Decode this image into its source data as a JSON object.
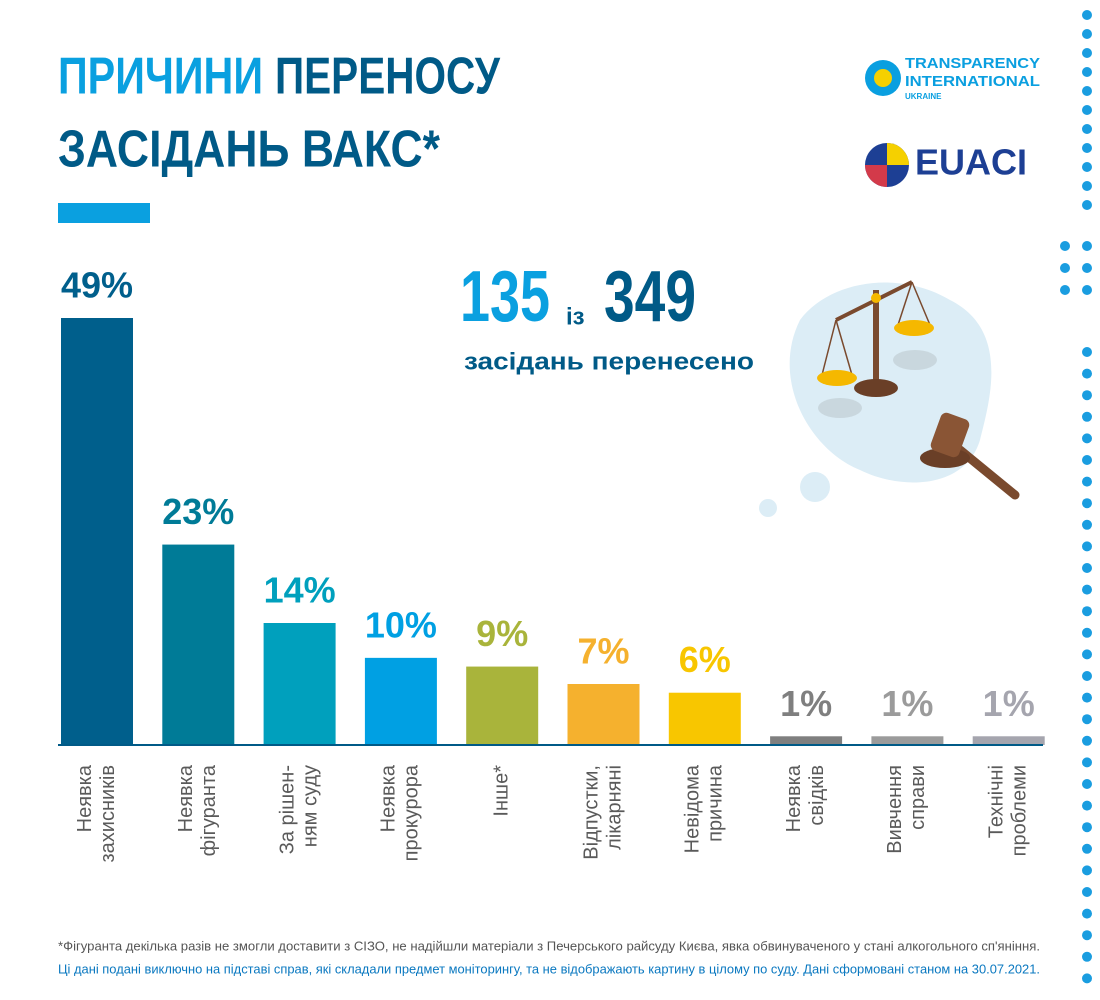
{
  "chart_data": {
    "type": "bar",
    "title": [
      "ПРИЧИНИ",
      "ПЕРЕНОСУ",
      "ЗАСІДАНЬ ВАКС*"
    ],
    "categories": [
      [
        "Неявка",
        "захисників"
      ],
      [
        "Неявка",
        "фігуранта"
      ],
      [
        "За рішен-",
        "ням суду"
      ],
      [
        "Неявка",
        "прокурора"
      ],
      [
        "Інше*"
      ],
      [
        "Відпустки,",
        "лікарняні"
      ],
      [
        "Невідома",
        "причина"
      ],
      [
        "Неявка",
        "свідків"
      ],
      [
        "Вивчення",
        "справи"
      ],
      [
        "Технічні",
        "проблеми"
      ]
    ],
    "values": [
      49,
      23,
      14,
      10,
      9,
      7,
      6,
      1,
      1,
      1
    ],
    "value_labels": [
      "49%",
      "23%",
      "14%",
      "10%",
      "9%",
      "7%",
      "6%",
      "1%",
      "1%",
      "1%"
    ],
    "colors": [
      "#005f8c",
      "#007b97",
      "#00a0bd",
      "#00a0e3",
      "#a9b43b",
      "#f5b12e",
      "#f8c600",
      "#7f7f7f",
      "#9b9b9b",
      "#a5a5ae"
    ]
  },
  "stat": {
    "done": 135,
    "of": "із",
    "total": 349,
    "caption": "засідань перенесено"
  },
  "logos": {
    "ti": [
      "TRANSPARENCY",
      "INTERNATIONAL",
      "UKRAINE"
    ],
    "euaci": "EUACI"
  },
  "footnotes": [
    "*Фігуранта декілька разів не змогли доставити з СІЗО, не надійшли матеріали з Печерського райсуду Києва, явка обвинуваченого у стані алкогольного сп'яніння.",
    "Ці дані подані виключно на підставі справ, які складали предмет моніторингу, та не відображають картину в цілому по суду. Дані сформовані станом на 30.07.2021."
  ]
}
